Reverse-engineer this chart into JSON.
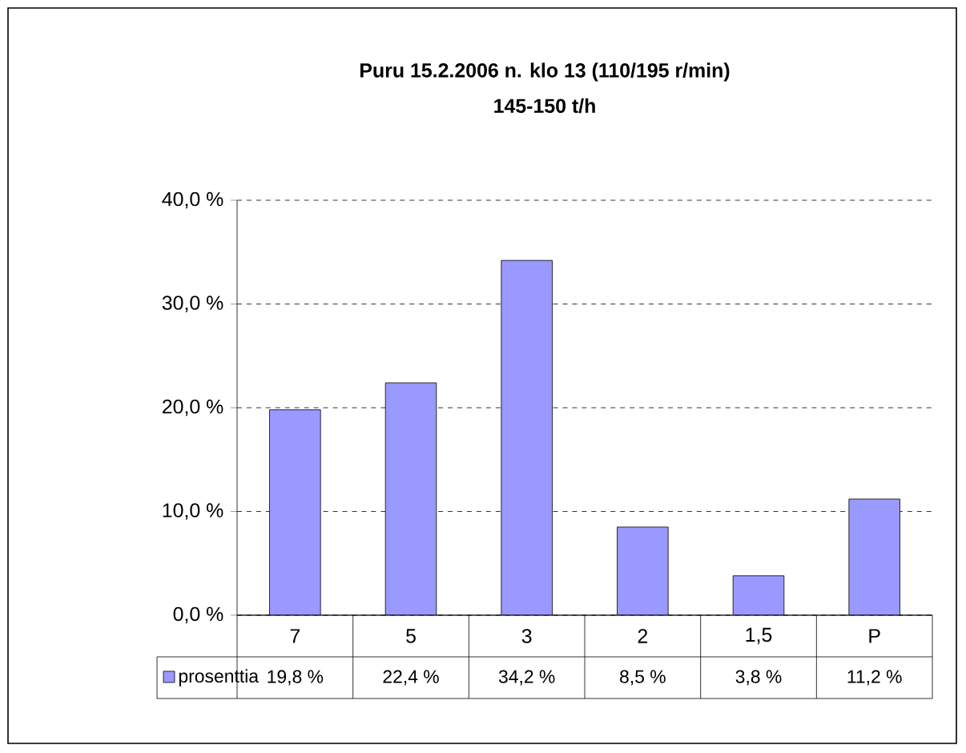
{
  "chart_data": {
    "type": "bar",
    "title": "Puru 15.2.2006 n. klo 13 (110/195 r/min)",
    "subtitle": "145-150 t/h",
    "categories": [
      "7",
      "5",
      "3",
      "2",
      "1,5",
      "P"
    ],
    "series": [
      {
        "name": "prosenttia",
        "color": "#9999ff",
        "values": [
          19.8,
          22.4,
          34.2,
          8.5,
          3.8,
          11.2
        ],
        "value_labels": [
          "19,8 %",
          "22,4 %",
          "34,2 %",
          "8,5 %",
          "3,8 %",
          "11,2 %"
        ]
      }
    ],
    "ylim": [
      0,
      40
    ],
    "yticks": [
      {
        "value": 0,
        "label": "0,0 %"
      },
      {
        "value": 10,
        "label": "10,0 %"
      },
      {
        "value": 20,
        "label": "20,0 %"
      },
      {
        "value": 30,
        "label": "30,0 %"
      },
      {
        "value": 40,
        "label": "40,0 %"
      }
    ],
    "grid": "y",
    "legend": "bottom"
  }
}
